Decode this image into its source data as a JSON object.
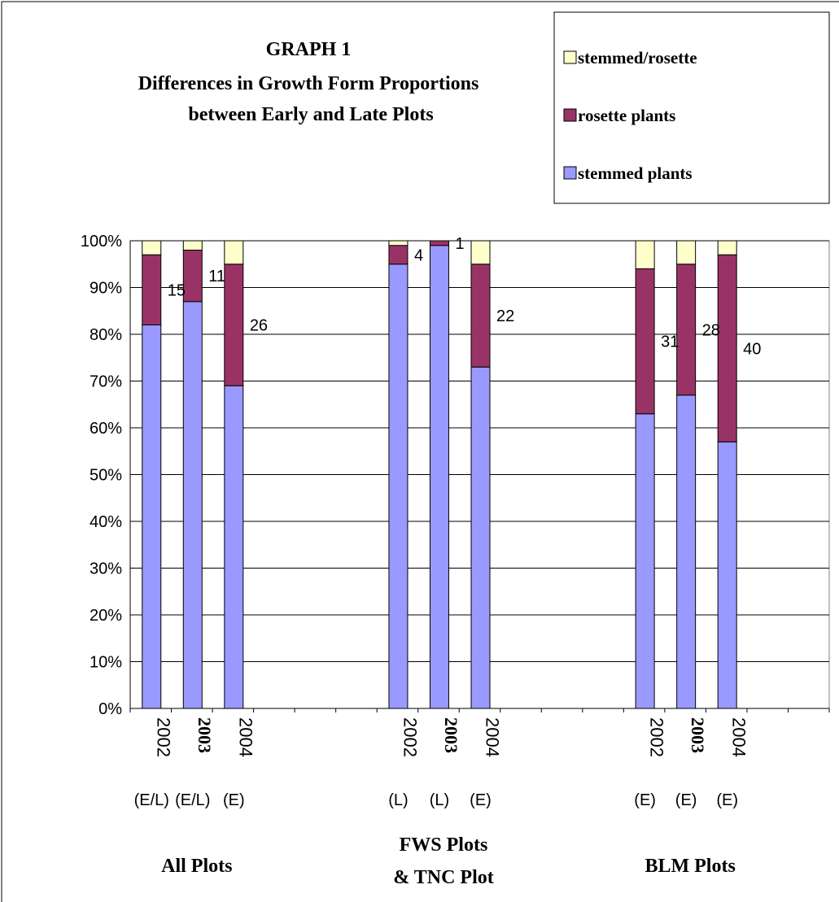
{
  "chart_data": {
    "type": "bar",
    "stacked": true,
    "title": [
      "GRAPH 1",
      "Differences in Growth Form Proportions",
      "between Early and Late Plots"
    ],
    "y_axis": {
      "min": 0,
      "max": 100,
      "step": 10,
      "format": "percent"
    },
    "y_ticks": [
      "0%",
      "10%",
      "20%",
      "30%",
      "40%",
      "50%",
      "60%",
      "70%",
      "80%",
      "90%",
      "100%"
    ],
    "grid": true,
    "legend": {
      "placement": "top-right",
      "entries": [
        {
          "label": "stemmed/rosette",
          "color": "#FFFFCC"
        },
        {
          "label": "rosette plants",
          "color": "#993366"
        },
        {
          "label": "stemmed plants",
          "color": "#9999FF"
        }
      ]
    },
    "series": [
      {
        "name": "stemmed plants",
        "color": "#9999FF"
      },
      {
        "name": "rosette plants",
        "color": "#993366"
      },
      {
        "name": "stemmed/rosette",
        "color": "#FFFFCC"
      }
    ],
    "groups": [
      {
        "label": [
          "All Plots"
        ],
        "bars": [
          {
            "year": "2002",
            "year_bold": false,
            "sub": "(E/L)",
            "stemmed": 82,
            "rosette": 15,
            "stemmed_rosette": 3,
            "data_label": "15"
          },
          {
            "year": "2003",
            "year_bold": true,
            "sub": "(E/L)",
            "stemmed": 87,
            "rosette": 11,
            "stemmed_rosette": 2,
            "data_label": "11"
          },
          {
            "year": "2004",
            "year_bold": false,
            "sub": "(E)",
            "stemmed": 69,
            "rosette": 26,
            "stemmed_rosette": 5,
            "data_label": "26"
          }
        ]
      },
      {
        "label": [
          "FWS Plots",
          "& TNC Plot"
        ],
        "bars": [
          {
            "year": "2002",
            "year_bold": false,
            "sub": "(L)",
            "stemmed": 95,
            "rosette": 4,
            "stemmed_rosette": 1,
            "data_label": "4"
          },
          {
            "year": "2003",
            "year_bold": true,
            "sub": "(L)",
            "stemmed": 99,
            "rosette": 1,
            "stemmed_rosette": 0,
            "data_label": "1"
          },
          {
            "year": "2004",
            "year_bold": false,
            "sub": "(E)",
            "stemmed": 73,
            "rosette": 22,
            "stemmed_rosette": 5,
            "data_label": "22"
          }
        ]
      },
      {
        "label": [
          "BLM Plots"
        ],
        "bars": [
          {
            "year": "2002",
            "year_bold": false,
            "sub": "(E)",
            "stemmed": 63,
            "rosette": 31,
            "stemmed_rosette": 6,
            "data_label": "31"
          },
          {
            "year": "2003",
            "year_bold": true,
            "sub": "(E)",
            "stemmed": 67,
            "rosette": 28,
            "stemmed_rosette": 5,
            "data_label": "28"
          },
          {
            "year": "2004",
            "year_bold": false,
            "sub": "(E)",
            "stemmed": 57,
            "rosette": 40,
            "stemmed_rosette": 3,
            "data_label": "40"
          }
        ]
      }
    ]
  }
}
